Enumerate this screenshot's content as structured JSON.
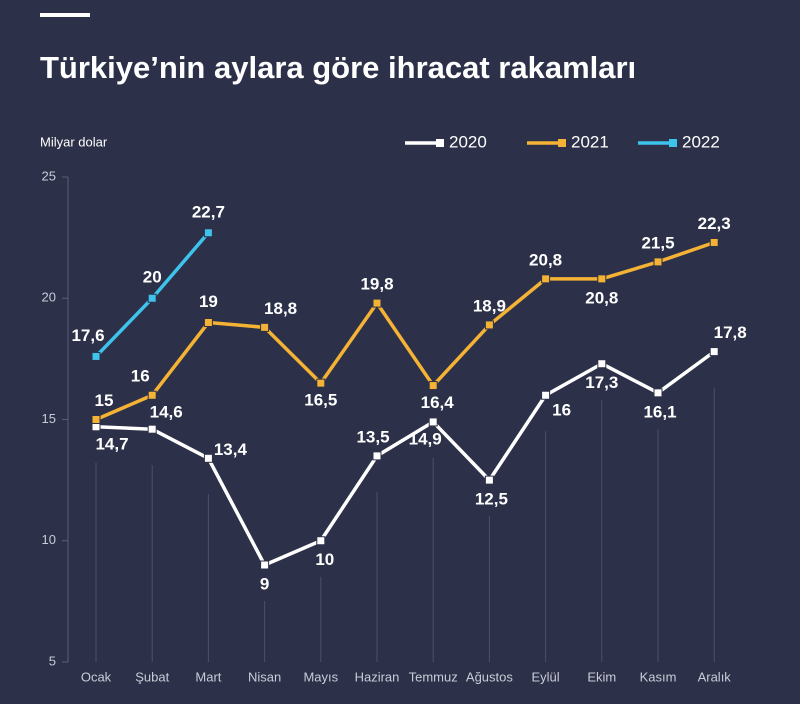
{
  "chart_data": {
    "type": "line",
    "title": "Türkiye’nin aylara göre ihracat rakamları",
    "ylabel": "Milyar dolar",
    "categories": [
      "Ocak",
      "Şubat",
      "Mart",
      "Nisan",
      "Mayıs",
      "Haziran",
      "Temmuz",
      "Ağustos",
      "Eylül",
      "Ekim",
      "Kasım",
      "Aralık"
    ],
    "series": [
      {
        "name": "2020",
        "color": "#ffffff",
        "values": [
          14.7,
          14.6,
          13.4,
          9,
          10,
          13.5,
          14.9,
          12.5,
          16,
          17.3,
          16.1,
          17.8
        ],
        "value_labels": [
          "14,7",
          "14,6",
          "13,4",
          "9",
          "10",
          "13,5",
          "14,9",
          "12,5",
          "16",
          "17,3",
          "16,1",
          "17,8"
        ]
      },
      {
        "name": "2021",
        "color": "#f5b335",
        "values": [
          15,
          16,
          19,
          18.8,
          16.5,
          19.8,
          16.4,
          18.9,
          20.8,
          20.8,
          21.5,
          22.3
        ],
        "value_labels": [
          "15",
          "16",
          "19",
          "18,8",
          "16,5",
          "19,8",
          "16,4",
          "18,9",
          "20,8",
          "20,8",
          "21,5",
          "22,3"
        ]
      },
      {
        "name": "2022",
        "color": "#3ec3ec",
        "values": [
          17.6,
          20,
          22.7,
          null,
          null,
          null,
          null,
          null,
          null,
          null,
          null,
          null
        ],
        "value_labels": [
          "17,6",
          "20",
          "22,7",
          null,
          null,
          null,
          null,
          null,
          null,
          null,
          null,
          null
        ]
      }
    ],
    "ylim": [
      5,
      25
    ],
    "yticks": [
      5,
      10,
      15,
      20,
      25
    ]
  }
}
